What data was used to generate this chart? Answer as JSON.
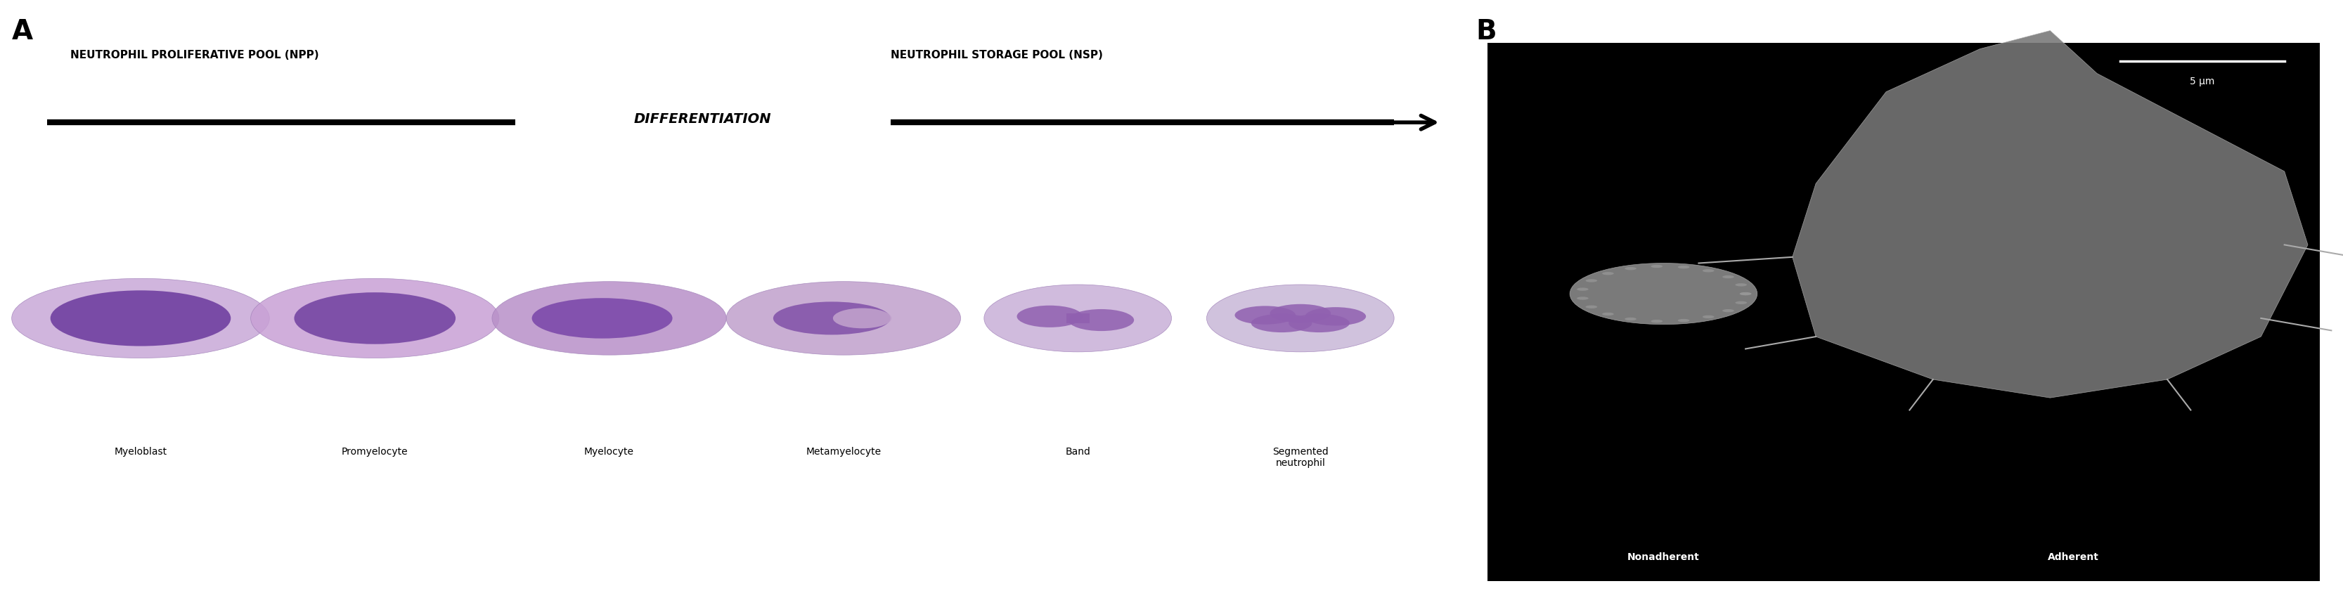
{
  "fig_width": 33.33,
  "fig_height": 8.71,
  "panel_A_label": "A",
  "panel_B_label": "B",
  "npp_label": "NEUTROPHIL PROLIFERATIVE POOL (NPP)",
  "nsp_label": "NEUTROPHIL STORAGE POOL (NSP)",
  "differentiation_label": "DIFFERENTIATION",
  "cell_labels": [
    "Myeloblast",
    "Promyelocyte",
    "Myelocyte",
    "Metamyelocyte",
    "Band",
    "Segmented\nneutrophil"
  ],
  "nonadherent_label": "Nonadherent",
  "adherent_label": "Adherent",
  "scale_label": "5 μm",
  "cell_colors_outer": [
    "#c8a8d8",
    "#c8a0d5",
    "#b890c8",
    "#c0a0cc",
    "#c8b0d8",
    "#c8b8d8"
  ],
  "cell_colors_inner": [
    "#7040a0",
    "#7040a0",
    "#7845a8",
    "#8050a8",
    "#9060b0",
    "#9060b0"
  ],
  "background_color": "#ffffff",
  "sem_bg_color": "#000000",
  "arrow_color": "#000000",
  "line_color": "#000000",
  "text_color": "#000000",
  "white_text_color": "#ffffff"
}
